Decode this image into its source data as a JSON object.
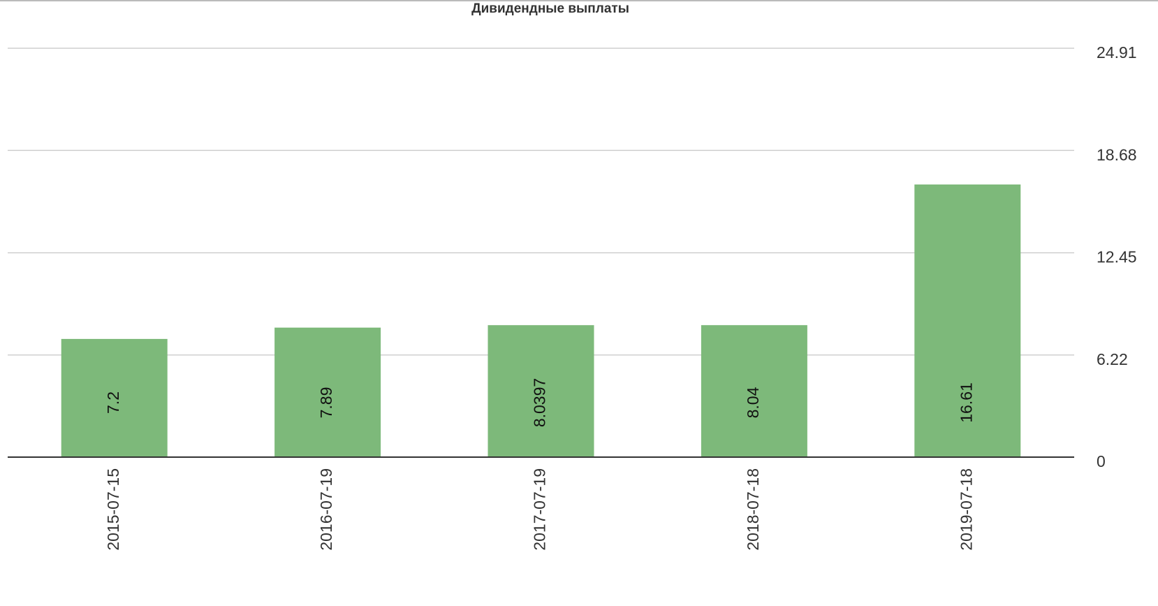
{
  "chart_data": {
    "type": "bar",
    "title": "Дивидендные выплаты",
    "categories": [
      "2015-07-15",
      "2016-07-19",
      "2017-07-19",
      "2018-07-18",
      "2019-07-18"
    ],
    "values": [
      7.2,
      7.89,
      8.0397,
      8.04,
      16.61
    ],
    "color": "#7db97a",
    "ylim": [
      0,
      24.91
    ],
    "yticks": [
      0,
      6.22,
      12.45,
      18.68,
      24.91
    ],
    "grid": true,
    "y_axis_side": "right"
  }
}
